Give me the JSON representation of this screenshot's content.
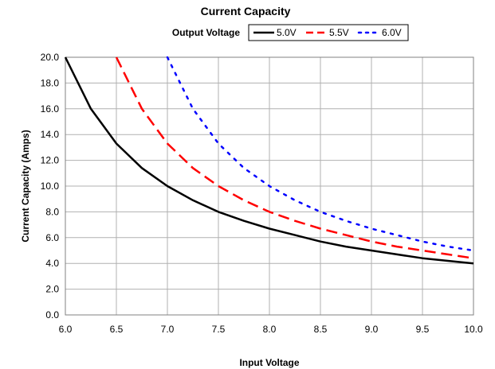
{
  "chart_data": {
    "type": "line",
    "title": "Current Capacity",
    "legend_title": "Output Voltage",
    "legend_placement": "top",
    "xlabel": "Input Voltage",
    "ylabel": "Current Capacity (Amps)",
    "xlim": [
      6.0,
      10.0
    ],
    "ylim": [
      0.0,
      20.0
    ],
    "x_ticks": [
      "6.0",
      "6.5",
      "7.0",
      "7.5",
      "8.0",
      "8.5",
      "9.0",
      "9.5",
      "10.0"
    ],
    "y_ticks": [
      "0.0",
      "2.0",
      "4.0",
      "6.0",
      "8.0",
      "10.0",
      "12.0",
      "14.0",
      "16.0",
      "18.0",
      "20.0"
    ],
    "grid": true,
    "series": [
      {
        "name": "5.0V",
        "color": "#000000",
        "style": "solid",
        "x": [
          6.0,
          6.25,
          6.5,
          6.75,
          7.0,
          7.25,
          7.5,
          7.75,
          8.0,
          8.25,
          8.5,
          8.75,
          9.0,
          9.25,
          9.5,
          9.75,
          10.0
        ],
        "values": [
          20.0,
          16.0,
          13.3,
          11.4,
          10.0,
          8.9,
          8.0,
          7.3,
          6.7,
          6.2,
          5.7,
          5.3,
          5.0,
          4.7,
          4.4,
          4.2,
          4.0
        ]
      },
      {
        "name": "5.5V",
        "color": "#ff0000",
        "style": "dashed",
        "x": [
          6.5,
          6.75,
          7.0,
          7.25,
          7.5,
          7.75,
          8.0,
          8.25,
          8.5,
          8.75,
          9.0,
          9.25,
          9.5,
          9.75,
          10.0
        ],
        "values": [
          20.0,
          16.0,
          13.3,
          11.4,
          10.0,
          8.9,
          8.0,
          7.3,
          6.7,
          6.2,
          5.7,
          5.3,
          5.0,
          4.7,
          4.4
        ]
      },
      {
        "name": "6.0V",
        "color": "#0000ff",
        "style": "dotted",
        "x": [
          7.0,
          7.25,
          7.5,
          7.75,
          8.0,
          8.25,
          8.5,
          8.75,
          9.0,
          9.25,
          9.5,
          9.75,
          10.0
        ],
        "values": [
          20.0,
          16.0,
          13.3,
          11.4,
          10.0,
          8.9,
          8.0,
          7.3,
          6.7,
          6.2,
          5.7,
          5.3,
          5.0
        ]
      }
    ]
  }
}
